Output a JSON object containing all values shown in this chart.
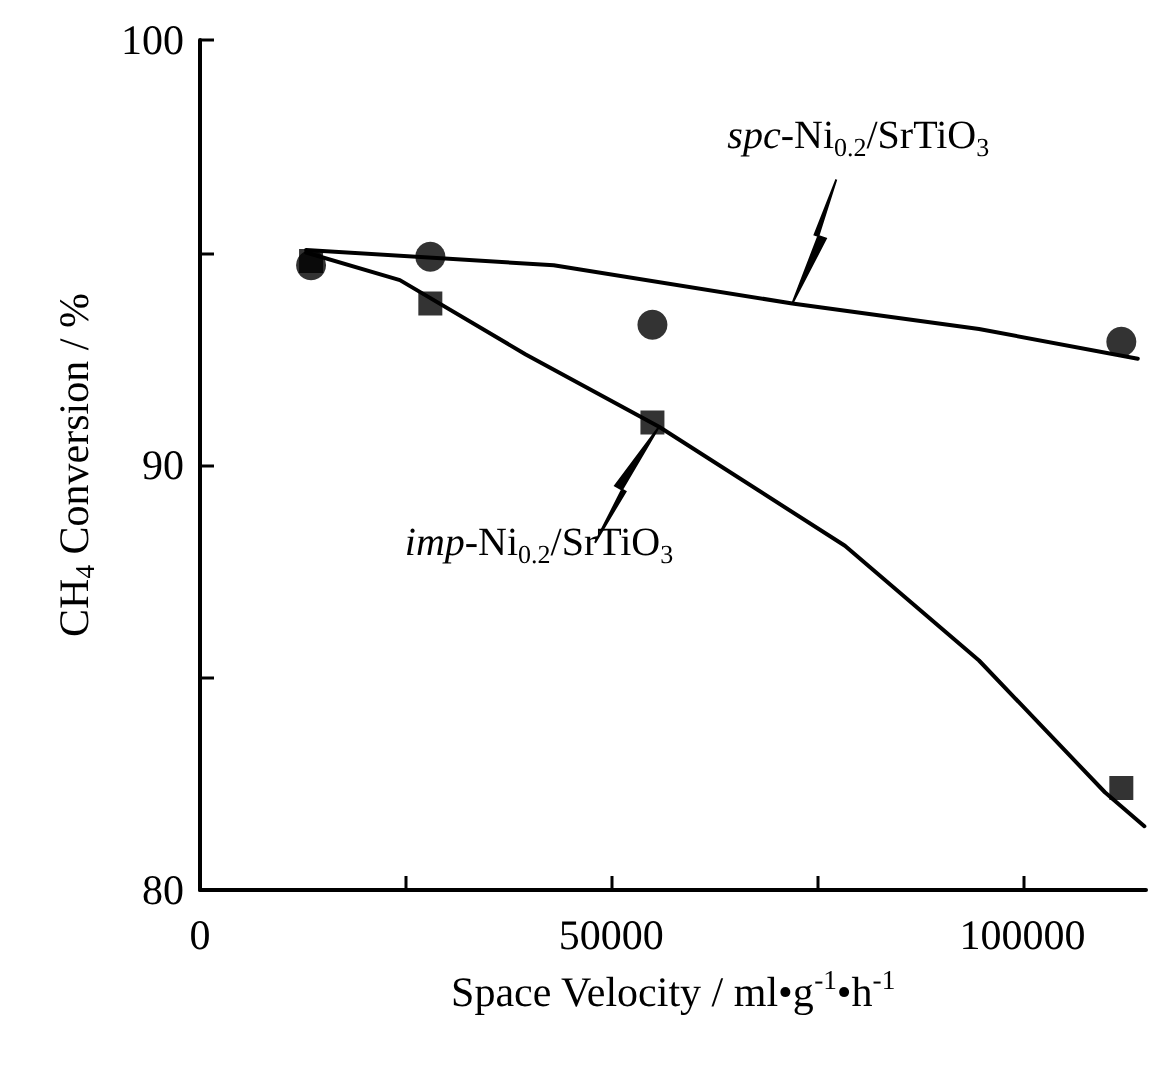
{
  "chart_data": {
    "type": "scatter",
    "xlabel": "Space Velocity / ml•g$^{-1}$•h$^{-1}$",
    "ylabel": "CH$_{4}$ Conversion / %",
    "xlim": [
      0,
      115000
    ],
    "xticks": [
      0,
      {
        "value": 25000,
        "label": null
      },
      50000,
      {
        "value": 75000,
        "label": null
      },
      100000
    ],
    "ylim": [
      80,
      100
    ],
    "yticks": [
      80,
      {
        "value": 85,
        "label": null
      },
      90,
      {
        "value": 95,
        "label": null
      },
      100
    ],
    "grid": false,
    "series": [
      {
        "marker": "circle",
        "color": "#000000",
        "x": [
          13500,
          28000,
          55000,
          112000
        ],
        "values": [
          94.7,
          94.9,
          93.3,
          92.9
        ]
      },
      {
        "marker": "square",
        "color": "#000000",
        "x": [
          13500,
          28000,
          55000,
          112000
        ],
        "values": [
          94.8,
          93.8,
          91.0,
          82.4
        ]
      },
      {
        "type": "line",
        "marker": "none",
        "name": "spc-Ni$_{0.2}$/SrTiO$_{3}$",
        "color": "#000000",
        "x": [
          12900,
          43000,
          72000,
          94700,
          114000
        ],
        "values": [
          95.06,
          94.7,
          93.8,
          93.2,
          92.5
        ]
      },
      {
        "type": "line",
        "marker": "none",
        "name": "imp-Ni$_{0.2}$/SrTiO$_{3}$",
        "color": "#000000",
        "x": [
          12900,
          24300,
          39600,
          55800,
          78400,
          94700,
          110000,
          114800
        ],
        "values": [
          95.0,
          94.35,
          92.6,
          90.9,
          88.1,
          85.4,
          82.3,
          81.5
        ]
      }
    ]
  }
}
